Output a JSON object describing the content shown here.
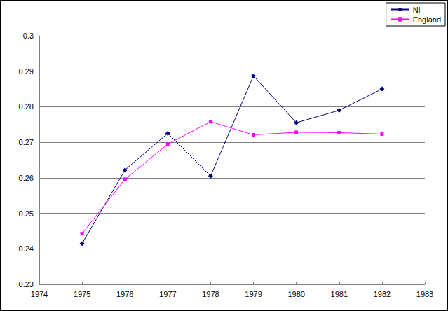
{
  "chart_data": {
    "type": "line",
    "x": [
      1975,
      1976,
      1977,
      1978,
      1979,
      1980,
      1981,
      1982
    ],
    "series": [
      {
        "name": "NI",
        "color": "#000080",
        "marker": "diamond",
        "values": [
          0.2415,
          0.2622,
          0.2725,
          0.2605,
          0.2887,
          0.2755,
          0.279,
          0.285
        ]
      },
      {
        "name": "England",
        "color": "#ff00ff",
        "marker": "square",
        "values": [
          0.2443,
          0.2596,
          0.2695,
          0.2758,
          0.2721,
          0.2728,
          0.2727,
          0.2723
        ]
      }
    ],
    "xlim": [
      1974,
      1983
    ],
    "xticks": [
      1974,
      1975,
      1976,
      1977,
      1978,
      1979,
      1980,
      1981,
      1982,
      1983
    ],
    "ylim": [
      0.23,
      0.3
    ],
    "yticks": [
      0.23,
      0.24,
      0.25,
      0.26,
      0.27,
      0.28,
      0.29,
      0.3
    ],
    "grid": true,
    "legend": "top-right"
  }
}
